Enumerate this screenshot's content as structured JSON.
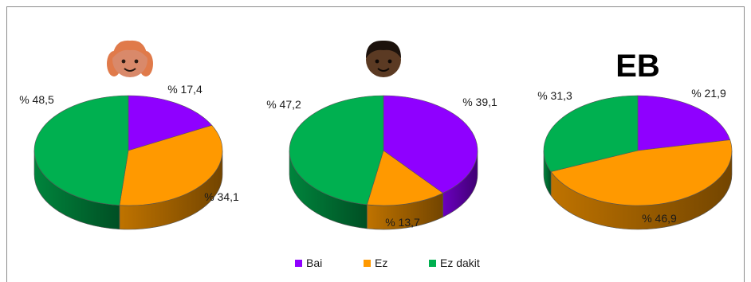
{
  "chart_data": [
    {
      "type": "pie",
      "title": "",
      "header_icon": "girl-face-icon",
      "categories": [
        "Bai",
        "Ez",
        "Ez dakit"
      ],
      "values": [
        17.4,
        34.1,
        48.5
      ],
      "labels": [
        "% 17,4",
        "% 34,1",
        "% 48,5"
      ]
    },
    {
      "type": "pie",
      "title": "",
      "header_icon": "boy-face-icon",
      "categories": [
        "Bai",
        "Ez",
        "Ez dakit"
      ],
      "values": [
        39.1,
        13.7,
        47.2
      ],
      "labels": [
        "% 39,1",
        "% 13,7",
        "% 47,2"
      ]
    },
    {
      "type": "pie",
      "title": "EB",
      "header_icon": "",
      "categories": [
        "Bai",
        "Ez",
        "Ez dakit"
      ],
      "values": [
        21.9,
        46.9,
        31.3
      ],
      "labels": [
        "% 21,9",
        "% 46,9",
        "% 31,3"
      ]
    }
  ],
  "legend": [
    {
      "name": "Bai",
      "color": "#8f00ff"
    },
    {
      "name": "Ez",
      "color": "#ff9900"
    },
    {
      "name": "Ez dakit",
      "color": "#00b050"
    }
  ],
  "colors": {
    "Bai": "#8f00ff",
    "Ez": "#ff9900",
    "Ez dakit": "#00b050",
    "border": "#8c8c8c"
  }
}
